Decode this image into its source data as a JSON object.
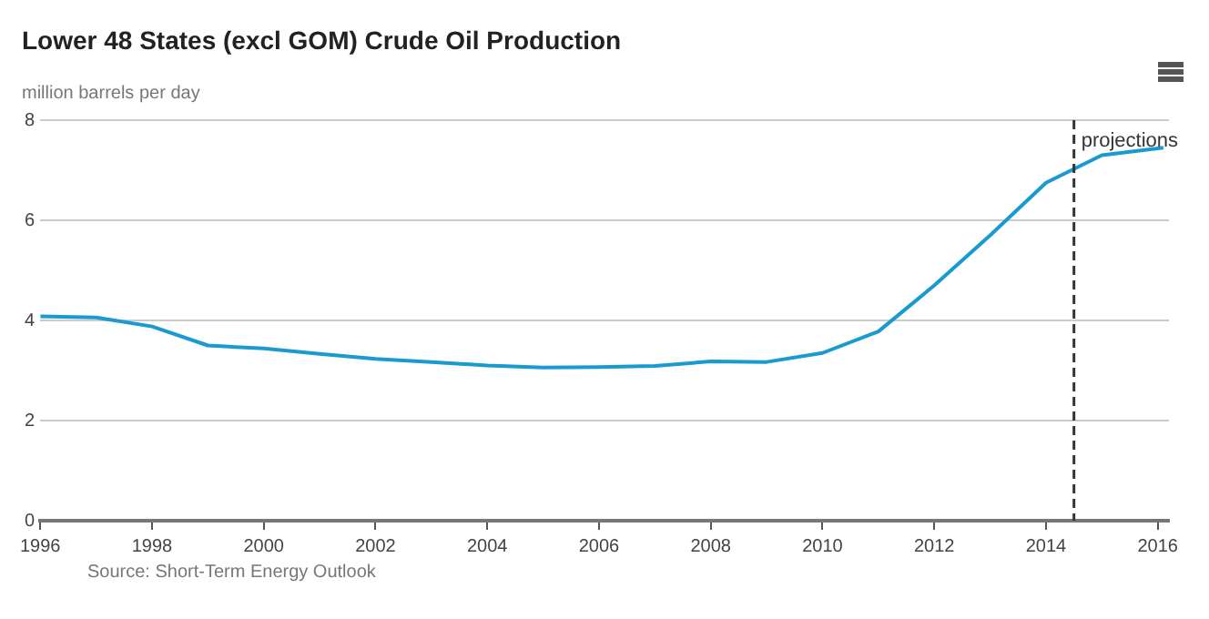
{
  "chart_data": {
    "type": "line",
    "title": "Lower 48 States (excl GOM) Crude Oil Production",
    "ylabel": "million barrels per day",
    "x": [
      1996,
      1997,
      1998,
      1999,
      2000,
      2001,
      2002,
      2003,
      2004,
      2005,
      2006,
      2007,
      2008,
      2009,
      2010,
      2011,
      2012,
      2013,
      2014,
      2015,
      2016.1
    ],
    "series": [
      {
        "color": "#1a9ad0",
        "values": [
          4.08,
          4.06,
          3.88,
          3.5,
          3.44,
          3.33,
          3.23,
          3.17,
          3.1,
          3.06,
          3.07,
          3.09,
          3.18,
          3.17,
          3.35,
          3.78,
          4.7,
          5.7,
          6.75,
          7.3,
          7.45
        ]
      }
    ],
    "xlim": [
      1996,
      2016.2
    ],
    "xticks": [
      1996,
      1998,
      2000,
      2002,
      2004,
      2006,
      2008,
      2010,
      2012,
      2014,
      2016
    ],
    "ylim": [
      0,
      8
    ],
    "yticks": [
      0,
      2,
      4,
      6,
      8
    ],
    "grid": "y",
    "legend": false,
    "marker": "none",
    "line_style": "solid",
    "ref_lines": [
      {
        "axis": "x",
        "value": 2014.5,
        "label": "projections",
        "color": "#333333",
        "line_style": "dashed"
      }
    ],
    "annotations": [
      "Source: Short-Term Energy Outlook"
    ]
  }
}
